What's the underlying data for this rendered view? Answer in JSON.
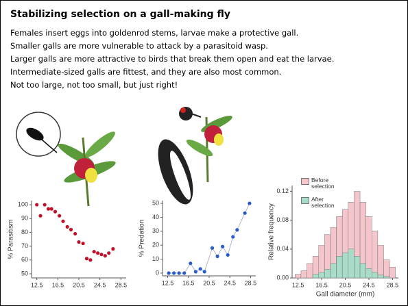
{
  "title": "Stabilizing selection on a gall-making fly",
  "lines": [
    "Females insert eggs into goldenrod stems, larvae make a protective gall.",
    "Smaller galls are more vulnerable to attack by a parasitoid wasp.",
    "Larger galls are more attractive to birds that break them open and eat the larvae.",
    "Intermediate-sized galls are fittest, and they are also most common.",
    "Not too large, not too small, but just right!"
  ],
  "chart_data": [
    {
      "type": "scatter",
      "ylabel": "% Parasitism",
      "color": "#c0102a",
      "x": [
        12.5,
        13.2,
        14,
        14.7,
        15.3,
        16,
        16.8,
        17.5,
        18.3,
        19,
        19.8,
        20.5,
        21.3,
        22,
        22.7,
        23.4,
        24.1,
        24.8,
        25.5,
        26.2,
        27
      ],
      "values": [
        100,
        92,
        100,
        97,
        97,
        95,
        92,
        88,
        84,
        82,
        79,
        73,
        72,
        61,
        60,
        66,
        65,
        64,
        63,
        65,
        68
      ],
      "xlim": [
        11.5,
        29.5
      ],
      "xticks": [
        12.5,
        16.5,
        20.5,
        24.5,
        28.5
      ],
      "ylim": [
        47,
        103
      ],
      "yticks": [
        50,
        60,
        70,
        80,
        90,
        100
      ]
    },
    {
      "type": "scatter",
      "connect": true,
      "ylabel": "% Predation",
      "color": "#2a5cc8",
      "x": [
        12.7,
        13.7,
        14.7,
        15.7,
        16.9,
        17.9,
        18.8,
        19.6,
        21.1,
        22.1,
        23.1,
        24.1,
        25.1,
        25.9,
        27.4,
        28.3
      ],
      "values": [
        0,
        0,
        0,
        0,
        7,
        1,
        3,
        1,
        18,
        12,
        19,
        13,
        26,
        31,
        43,
        50
      ],
      "xlim": [
        11.5,
        29.5
      ],
      "xticks": [
        12.5,
        16.5,
        20.5,
        24.5,
        28.5
      ],
      "ylim": [
        -2,
        52
      ],
      "yticks": [
        0,
        10,
        20,
        30,
        40,
        50
      ]
    },
    {
      "type": "histogram",
      "ylabel": "Relative frequency",
      "xlabel": "Gall diameter (mm)",
      "bins": [
        12,
        13,
        14,
        15,
        16,
        17,
        18,
        19,
        20,
        21,
        22,
        23,
        24,
        25,
        26,
        27,
        28,
        29
      ],
      "series": [
        {
          "name": "Before selection",
          "color": "#f4c6cc",
          "values": [
            0.005,
            0.01,
            0.02,
            0.03,
            0.045,
            0.06,
            0.07,
            0.085,
            0.095,
            0.105,
            0.12,
            0.105,
            0.085,
            0.065,
            0.045,
            0.025,
            0.015
          ]
        },
        {
          "name": "After selection",
          "color": "#a8dcc8",
          "values": [
            0,
            0,
            0,
            0.005,
            0.008,
            0.012,
            0.02,
            0.03,
            0.035,
            0.04,
            0.03,
            0.02,
            0.013,
            0.008,
            0.004,
            0.002,
            0
          ]
        }
      ],
      "xlim": [
        11.5,
        29.5
      ],
      "xticks": [
        12.5,
        16.5,
        20.5,
        24.5,
        28.5
      ],
      "ylim": [
        0,
        0.128
      ],
      "yticks": [
        {
          "value": 0,
          "label": "0.00"
        },
        0.04,
        0.08,
        0.12
      ]
    }
  ]
}
